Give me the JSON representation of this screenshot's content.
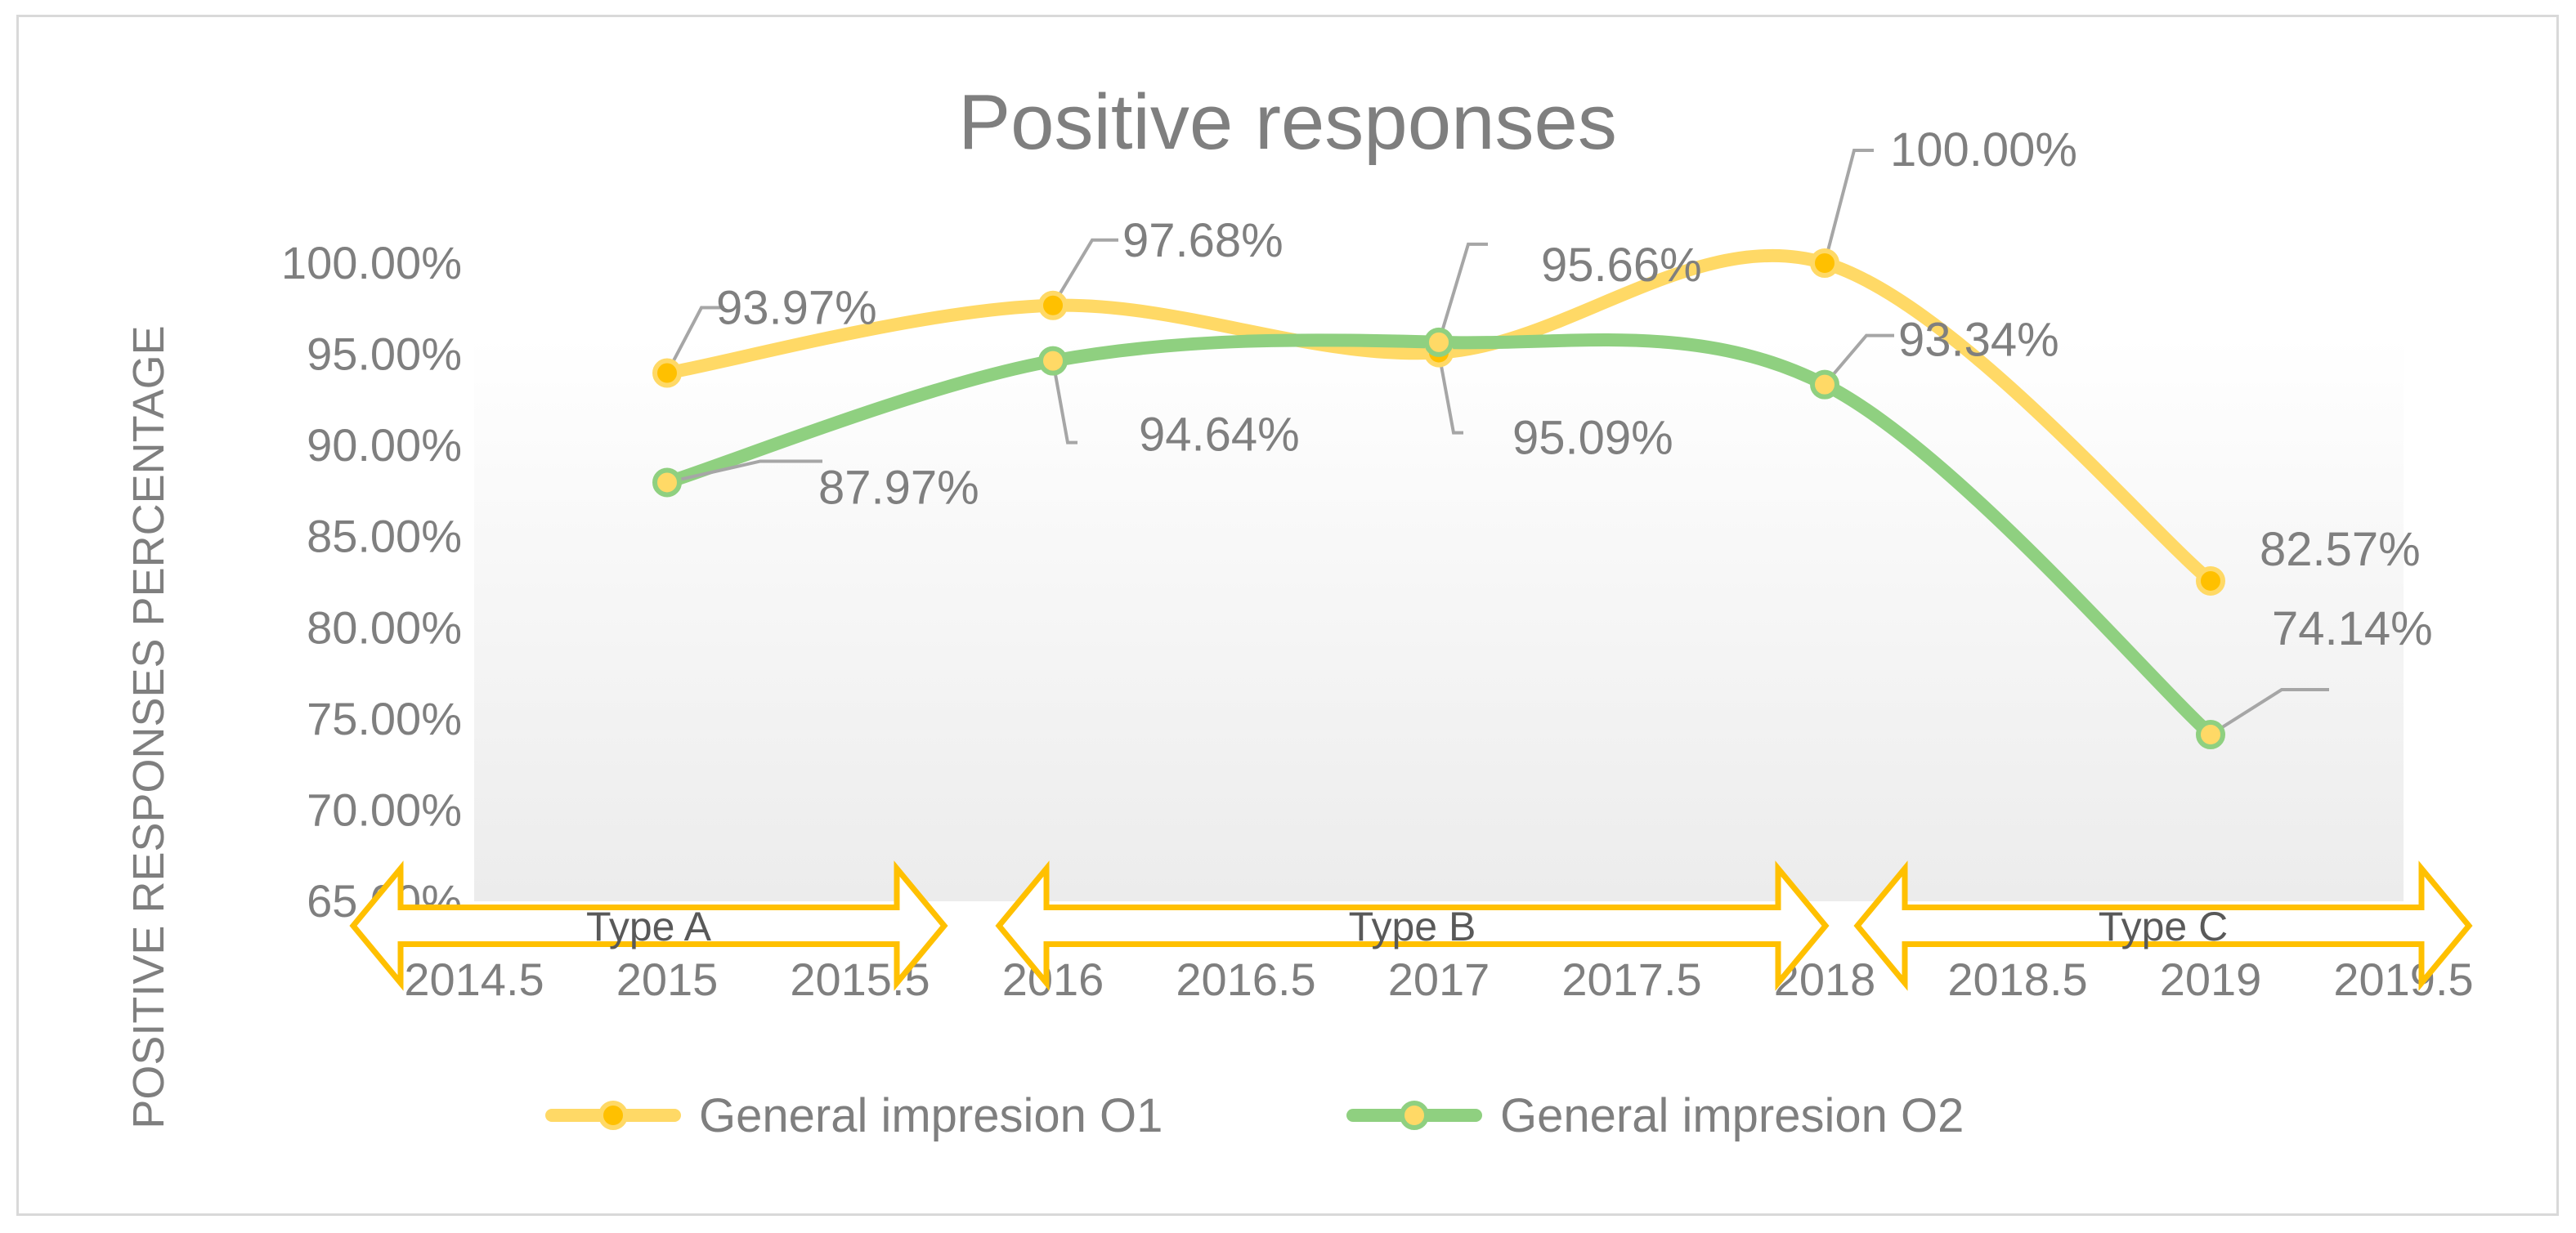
{
  "chart_data": {
    "type": "line",
    "title": "Positive responses",
    "xlabel": "",
    "ylabel": "POSITIVE RESPONSES PERCENTAGE",
    "x_ticks": [
      "2014.5",
      "2015",
      "2015.5",
      "2016",
      "2016.5",
      "2017",
      "2017.5",
      "2018",
      "2018.5",
      "2019",
      "2019.5"
    ],
    "y_ticks": [
      "65.00%",
      "70.00%",
      "75.00%",
      "80.00%",
      "85.00%",
      "90.00%",
      "95.00%",
      "100.00%"
    ],
    "xlim": [
      2014.5,
      2019.5
    ],
    "ylim": [
      65,
      100
    ],
    "grid": false,
    "legend_position": "bottom",
    "x": [
      2015,
      2016,
      2017,
      2018,
      2019
    ],
    "series": [
      {
        "name": "General impresion O1",
        "color": "#ffd966",
        "marker_color": "#ffc000",
        "values": [
          93.97,
          97.68,
          95.09,
          100.0,
          82.57
        ],
        "labels": [
          "93.97%",
          "97.68%",
          "95.09%",
          "100.00%",
          "82.57%"
        ]
      },
      {
        "name": "General impresion O2",
        "color": "#8fd080",
        "marker_color": "#ffd966",
        "values": [
          87.97,
          94.64,
          95.66,
          93.34,
          74.14
        ],
        "labels": [
          "87.97%",
          "94.64%",
          "95.66%",
          "93.34%",
          "74.14%"
        ]
      }
    ],
    "annotations": [
      {
        "label": "Type A",
        "from": 2014.5,
        "to": 2015.5
      },
      {
        "label": "Type B",
        "from": 2016,
        "to": 2018
      },
      {
        "label": "Type C",
        "from": 2018.2,
        "to": 2019.5
      }
    ],
    "arrow_color": "#ffc000"
  }
}
